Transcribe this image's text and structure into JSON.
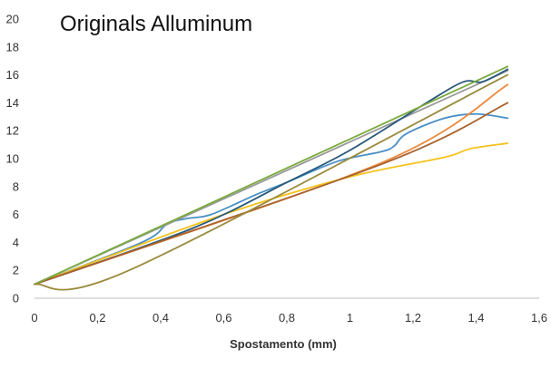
{
  "chart_data": {
    "type": "line",
    "title": "Originals Alluminum",
    "xlabel": "Spostamento (mm)",
    "ylabel": "",
    "xlim": [
      0,
      1.6
    ],
    "ylim": [
      0,
      20
    ],
    "x_ticks": [
      "0",
      "0,2",
      "0,4",
      "0,6",
      "0,8",
      "1",
      "1,2",
      "1,4",
      "1,6"
    ],
    "y_ticks": [
      "0",
      "2",
      "4",
      "6",
      "8",
      "10",
      "12",
      "14",
      "16",
      "18",
      "20"
    ],
    "grid": false,
    "legend": "none",
    "series": [
      {
        "color": "#4a8fc4",
        "x": [
          0,
          0.34,
          0.42,
          0.48,
          0.56,
          0.7,
          0.8,
          0.96,
          1.1,
          1.14,
          1.18,
          1.3,
          1.4,
          1.5
        ],
        "y": [
          1,
          4.0,
          5.3,
          5.7,
          6.0,
          7.4,
          8.3,
          9.8,
          10.5,
          10.9,
          11.8,
          12.9,
          13.2,
          12.9
        ]
      },
      {
        "color": "#ec8a3d",
        "x": [
          0,
          1.1,
          1.5
        ],
        "y": [
          1,
          9.7,
          15.3
        ]
      },
      {
        "color": "#999999",
        "x": [
          0,
          1.5
        ],
        "y": [
          1,
          16.3
        ]
      },
      {
        "color": "#f5c21b",
        "x": [
          0,
          0.6,
          1.0,
          1.3,
          1.38,
          1.5
        ],
        "y": [
          1,
          6.0,
          8.7,
          10.1,
          10.7,
          11.1
        ]
      },
      {
        "color": "#28587a",
        "x": [
          0,
          0.5,
          0.8,
          1.0,
          1.25,
          1.36,
          1.42,
          1.5
        ],
        "y": [
          1,
          5.0,
          8.3,
          10.6,
          14.1,
          15.5,
          15.5,
          16.4
        ]
      },
      {
        "color": "#a8632e",
        "x": [
          0,
          1.1,
          1.5
        ],
        "y": [
          1,
          9.6,
          14.0
        ]
      },
      {
        "color": "#7aaa3e",
        "x": [
          0,
          1.5
        ],
        "y": [
          1,
          16.6
        ]
      },
      {
        "color": "#9a8a3c",
        "x": [
          0,
          0.3,
          1.5
        ],
        "y": [
          1,
          2.0,
          16.0
        ]
      }
    ]
  }
}
